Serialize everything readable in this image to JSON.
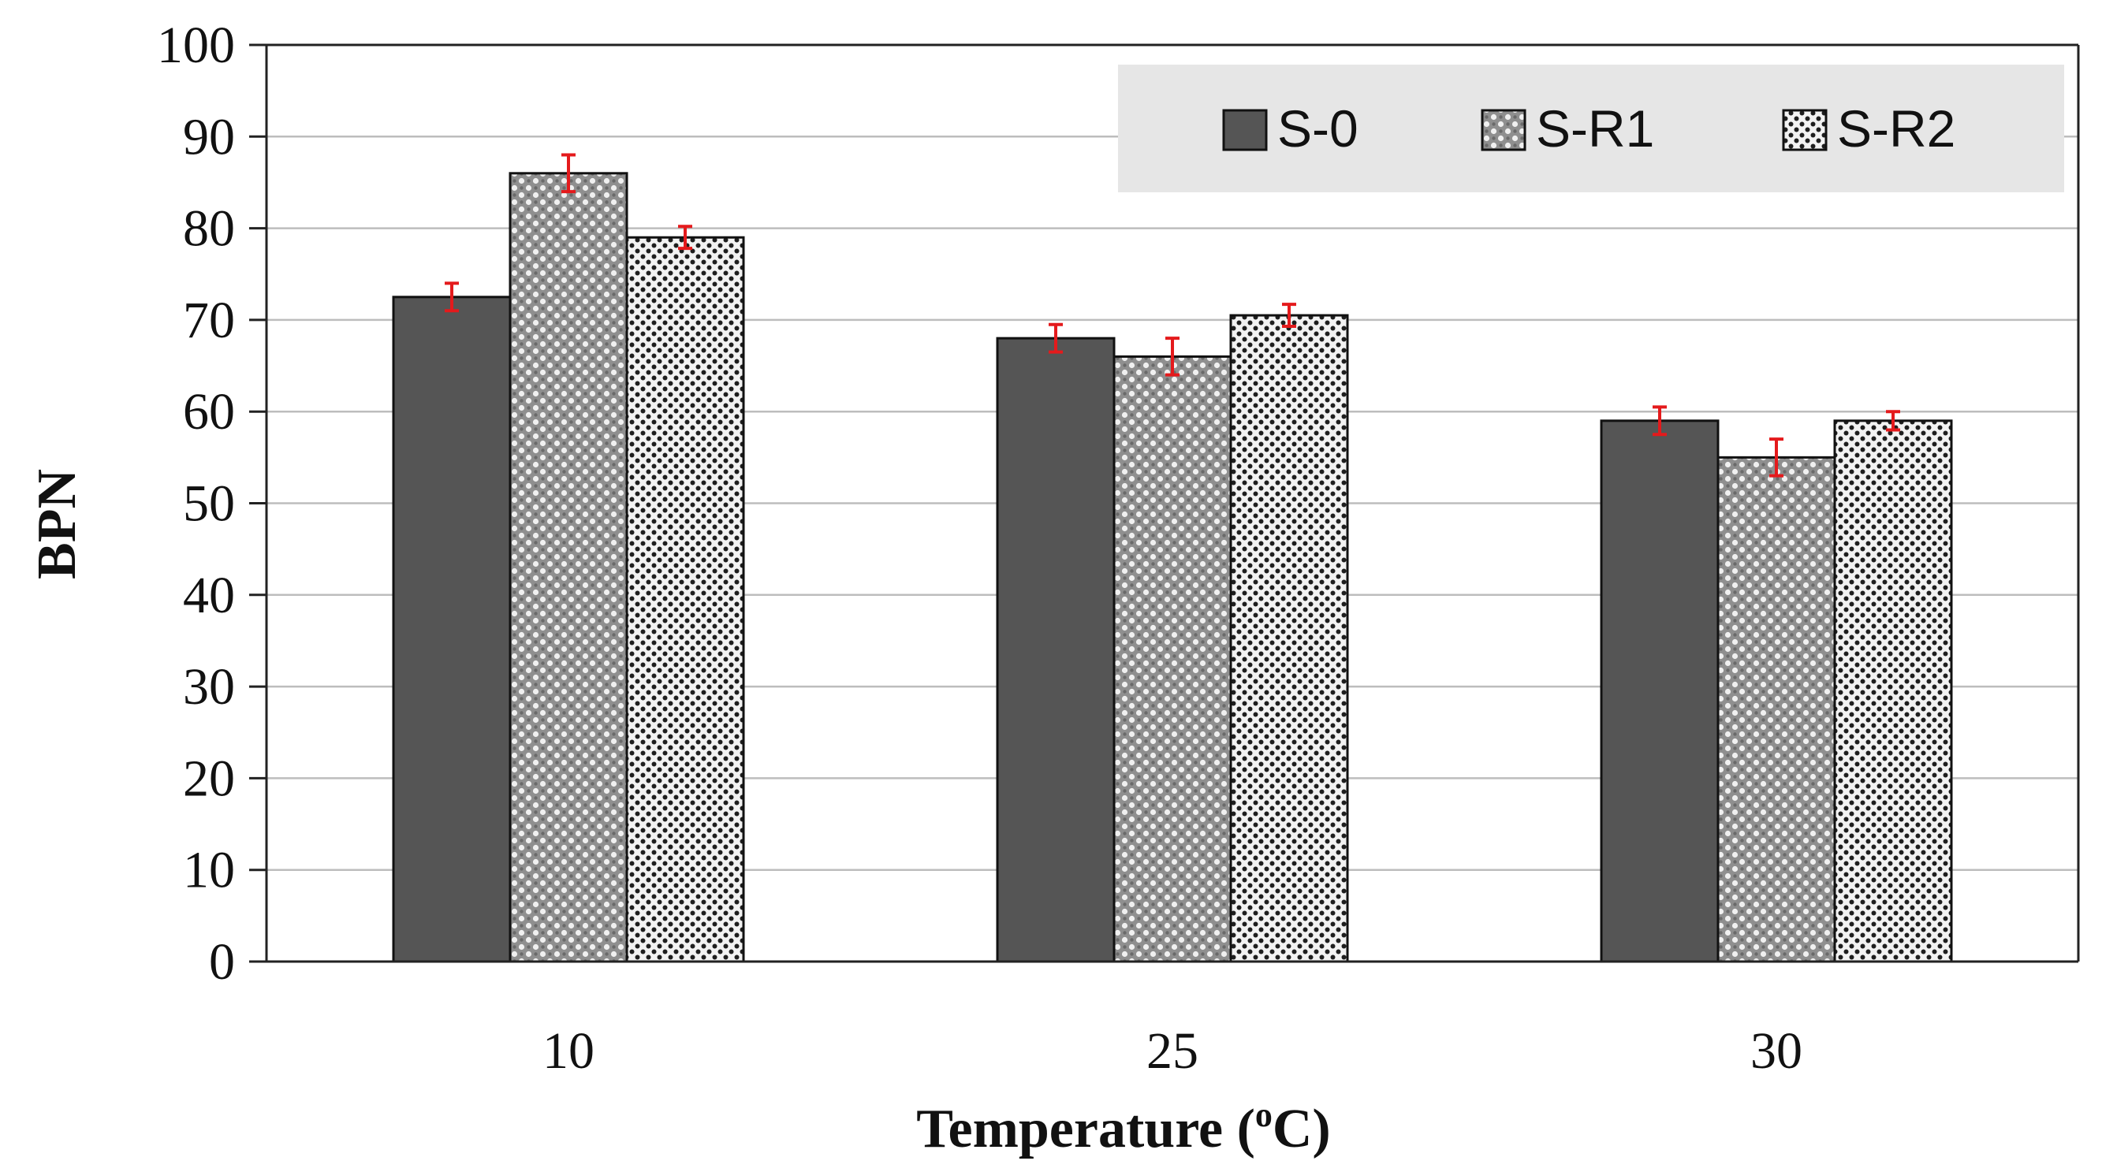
{
  "chart_data": {
    "type": "bar",
    "title": "",
    "xlabel": "Temperature (oC)",
    "xlabel_parts": {
      "prefix": "Temperature (",
      "superscript": "o",
      "suffix": "C)"
    },
    "ylabel": "BPN",
    "categories": [
      "10",
      "25",
      "30"
    ],
    "ylim": [
      0,
      100
    ],
    "yticks": [
      "0",
      "10",
      "20",
      "30",
      "40",
      "50",
      "60",
      "70",
      "80",
      "90",
      "100"
    ],
    "grid": true,
    "legend_position": "top-right",
    "series": [
      {
        "name": "S-0",
        "pattern": "solid",
        "color": "#555555",
        "values": [
          72.5,
          68,
          59
        ],
        "errors": [
          1.5,
          1.5,
          1.5
        ]
      },
      {
        "name": "S-R1",
        "pattern": "checker",
        "color": "#9a9a9a",
        "values": [
          86,
          66,
          55
        ],
        "errors": [
          2,
          2,
          2
        ]
      },
      {
        "name": "S-R2",
        "pattern": "dots",
        "color": "#3a3a3a",
        "values": [
          79,
          70.5,
          59
        ],
        "errors": [
          1.2,
          1.2,
          1
        ]
      }
    ],
    "colors": {
      "grid": "#bdbdbd",
      "axis": "#222222",
      "error_bar": "#e41a1c",
      "legend_bg": "#e6e6e6",
      "bar_edge": "#111111"
    }
  }
}
